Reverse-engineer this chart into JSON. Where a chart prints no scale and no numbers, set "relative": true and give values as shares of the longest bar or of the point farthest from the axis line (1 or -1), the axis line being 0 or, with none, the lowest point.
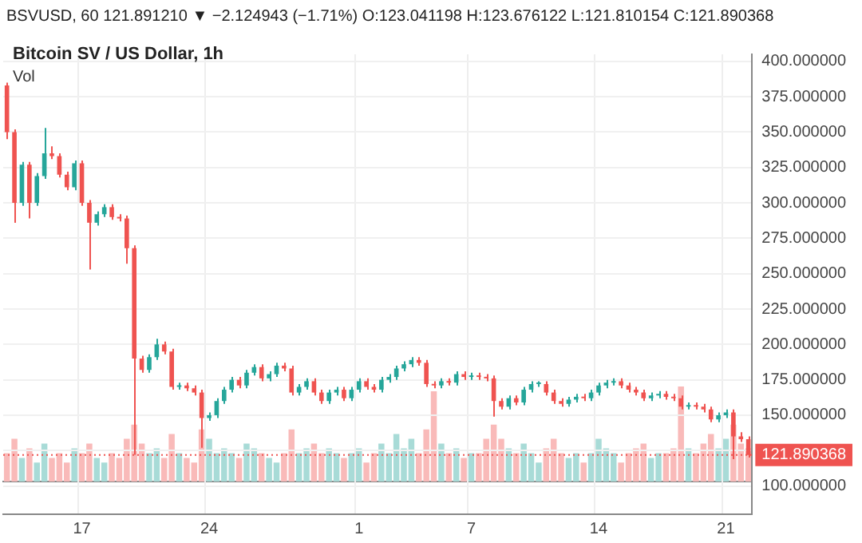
{
  "chart_data": [
    {
      "type": "candlestick",
      "title": "Bitcoin SV / US Dollar, 1h",
      "annotations": [
        "BSVUSD, 60  121.891210 ▼ −2.124943 (−1.71%)  O:123.041198  H:123.676122  L:121.810154  C:121.890368"
      ],
      "categories": [
        null,
        null,
        null,
        null,
        null,
        null,
        null,
        null,
        null,
        null,
        "17",
        null,
        null,
        null,
        null,
        null,
        null,
        null,
        null,
        null,
        null,
        null,
        null,
        null,
        null,
        null,
        null,
        "24",
        null,
        null,
        null,
        null,
        null,
        null,
        null,
        null,
        null,
        null,
        null,
        null,
        null,
        null,
        null,
        null,
        null,
        null,
        null,
        "1",
        null,
        null,
        null,
        null,
        null,
        null,
        null,
        null,
        null,
        null,
        null,
        null,
        null,
        null,
        "7",
        null,
        null,
        null,
        null,
        null,
        null,
        null,
        null,
        null,
        null,
        null,
        null,
        null,
        null,
        null,
        null,
        "14",
        null,
        null,
        null,
        null,
        null,
        null,
        null,
        null,
        null,
        null,
        null,
        null,
        null,
        null,
        null,
        null,
        "21",
        null,
        null,
        null
      ],
      "ohlc": [
        [
          383,
          385,
          345,
          350
        ],
        [
          350,
          352,
          286,
          300
        ],
        [
          300,
          329,
          298,
          327
        ],
        [
          327,
          329,
          289,
          300
        ],
        [
          300,
          321,
          298,
          319
        ],
        [
          319,
          353,
          317,
          335
        ],
        [
          335,
          340,
          331,
          333
        ],
        [
          333,
          335,
          318,
          320
        ],
        [
          320,
          322,
          309,
          311
        ],
        [
          311,
          330,
          309,
          328
        ],
        [
          328,
          330,
          298,
          300
        ],
        [
          300,
          302,
          253,
          286
        ],
        [
          286,
          294,
          284,
          292
        ],
        [
          292,
          299,
          290,
          297
        ],
        [
          297,
          299,
          288,
          290
        ],
        [
          290,
          292,
          287,
          289
        ],
        [
          289,
          291,
          257,
          268
        ],
        [
          268,
          270,
          122,
          190
        ],
        [
          190,
          192,
          180,
          182
        ],
        [
          182,
          193,
          180,
          191
        ],
        [
          191,
          204,
          189,
          200
        ],
        [
          200,
          202,
          193,
          195
        ],
        [
          195,
          197,
          168,
          170
        ],
        [
          170,
          173,
          168,
          171
        ],
        [
          171,
          173,
          167,
          169
        ],
        [
          169,
          171,
          164,
          166
        ],
        [
          166,
          168,
          127,
          148
        ],
        [
          148,
          152,
          146,
          150
        ],
        [
          150,
          162,
          148,
          160
        ],
        [
          160,
          170,
          158,
          168
        ],
        [
          168,
          177,
          166,
          175
        ],
        [
          175,
          177,
          169,
          171
        ],
        [
          171,
          182,
          169,
          180
        ],
        [
          180,
          186,
          178,
          184
        ],
        [
          184,
          186,
          174,
          176
        ],
        [
          176,
          181,
          174,
          179
        ],
        [
          179,
          187,
          177,
          185
        ],
        [
          185,
          187,
          181,
          183
        ],
        [
          183,
          185,
          164,
          166
        ],
        [
          166,
          172,
          164,
          170
        ],
        [
          170,
          176,
          168,
          174
        ],
        [
          174,
          176,
          164,
          166
        ],
        [
          166,
          168,
          158,
          160
        ],
        [
          160,
          168,
          158,
          166
        ],
        [
          166,
          170,
          164,
          168
        ],
        [
          168,
          170,
          160,
          162
        ],
        [
          162,
          170,
          160,
          168
        ],
        [
          168,
          176,
          166,
          174
        ],
        [
          174,
          176,
          168,
          170
        ],
        [
          170,
          172,
          166,
          168
        ],
        [
          168,
          177,
          166,
          175
        ],
        [
          175,
          179,
          173,
          177
        ],
        [
          177,
          185,
          175,
          183
        ],
        [
          183,
          188,
          181,
          186
        ],
        [
          186,
          191,
          184,
          189
        ],
        [
          189,
          191,
          185,
          187
        ],
        [
          187,
          189,
          170,
          172
        ],
        [
          172,
          174,
          169,
          171
        ],
        [
          171,
          176,
          169,
          174
        ],
        [
          174,
          176,
          171,
          173
        ],
        [
          173,
          181,
          171,
          179
        ],
        [
          179,
          181,
          175,
          177
        ],
        [
          177,
          180,
          175,
          178
        ],
        [
          178,
          180,
          175,
          177
        ],
        [
          177,
          179,
          174,
          176
        ],
        [
          176,
          178,
          149,
          160
        ],
        [
          160,
          162,
          154,
          156
        ],
        [
          156,
          164,
          154,
          162
        ],
        [
          162,
          164,
          157,
          159
        ],
        [
          159,
          170,
          157,
          168
        ],
        [
          168,
          174,
          166,
          172
        ],
        [
          172,
          174,
          170,
          172
        ],
        [
          172,
          174,
          164,
          166
        ],
        [
          166,
          168,
          158,
          160
        ],
        [
          160,
          162,
          156,
          158
        ],
        [
          158,
          163,
          156,
          161
        ],
        [
          161,
          165,
          159,
          163
        ],
        [
          163,
          165,
          160,
          162
        ],
        [
          162,
          168,
          160,
          166
        ],
        [
          166,
          173,
          164,
          171
        ],
        [
          171,
          175,
          169,
          173
        ],
        [
          173,
          176,
          171,
          174
        ],
        [
          174,
          176,
          169,
          171
        ],
        [
          171,
          173,
          166,
          168
        ],
        [
          168,
          170,
          164,
          166
        ],
        [
          166,
          168,
          160,
          162
        ],
        [
          162,
          166,
          160,
          164
        ],
        [
          164,
          167,
          162,
          165
        ],
        [
          165,
          167,
          161,
          163
        ],
        [
          163,
          165,
          160,
          162
        ],
        [
          162,
          164,
          154,
          156
        ],
        [
          156,
          159,
          154,
          157
        ],
        [
          157,
          159,
          154,
          156
        ],
        [
          156,
          158,
          152,
          154
        ],
        [
          154,
          156,
          145,
          147
        ],
        [
          147,
          152,
          145,
          150
        ],
        [
          150,
          154,
          148,
          152
        ],
        [
          152,
          154,
          119,
          135
        ],
        [
          135,
          138,
          131,
          133
        ],
        [
          133,
          135,
          120,
          121.890368
        ]
      ],
      "colors": [
        "#ef5350",
        "#ef5350",
        "#26a69a",
        "#ef5350",
        "#26a69a",
        "#26a69a",
        "#ef5350",
        "#ef5350",
        "#ef5350",
        "#26a69a",
        "#ef5350",
        "#ef5350",
        "#26a69a",
        "#26a69a",
        "#ef5350",
        "#ef5350",
        "#ef5350",
        "#ef5350",
        "#ef5350",
        "#26a69a",
        "#26a69a",
        "#ef5350",
        "#ef5350",
        "#26a69a",
        "#ef5350",
        "#ef5350",
        "#ef5350",
        "#26a69a",
        "#26a69a",
        "#26a69a",
        "#26a69a",
        "#ef5350",
        "#26a69a",
        "#26a69a",
        "#ef5350",
        "#26a69a",
        "#26a69a",
        "#ef5350",
        "#ef5350",
        "#26a69a",
        "#26a69a",
        "#ef5350",
        "#ef5350",
        "#26a69a",
        "#26a69a",
        "#ef5350",
        "#26a69a",
        "#26a69a",
        "#ef5350",
        "#ef5350",
        "#26a69a",
        "#26a69a",
        "#26a69a",
        "#26a69a",
        "#26a69a",
        "#ef5350",
        "#ef5350",
        "#ef5350",
        "#26a69a",
        "#ef5350",
        "#26a69a",
        "#ef5350",
        "#26a69a",
        "#ef5350",
        "#ef5350",
        "#ef5350",
        "#ef5350",
        "#26a69a",
        "#ef5350",
        "#26a69a",
        "#26a69a",
        "#26a69a",
        "#ef5350",
        "#ef5350",
        "#ef5350",
        "#26a69a",
        "#26a69a",
        "#ef5350",
        "#26a69a",
        "#26a69a",
        "#26a69a",
        "#26a69a",
        "#ef5350",
        "#ef5350",
        "#ef5350",
        "#ef5350",
        "#26a69a",
        "#26a69a",
        "#ef5350",
        "#ef5350",
        "#ef5350",
        "#26a69a",
        "#ef5350",
        "#ef5350",
        "#ef5350",
        "#26a69a",
        "#26a69a",
        "#ef5350",
        "#ef5350",
        "#ef5350"
      ],
      "ylim": [
        80,
        405
      ],
      "yticks": [
        {
          "value": 100,
          "label": "100.000000"
        },
        {
          "value": 125,
          "label": null
        },
        {
          "value": 150,
          "label": "150.000000"
        },
        {
          "value": 175,
          "label": "175.000000"
        },
        {
          "value": 200,
          "label": "200.000000"
        },
        {
          "value": 225,
          "label": "225.000000"
        },
        {
          "value": 250,
          "label": "250.000000"
        },
        {
          "value": 275,
          "label": "275.000000"
        },
        {
          "value": 300,
          "label": "300.000000"
        },
        {
          "value": 325,
          "label": "325.000000"
        },
        {
          "value": 350,
          "label": "350.000000"
        },
        {
          "value": 375,
          "label": "375.000000"
        },
        {
          "value": 400,
          "label": "400.000000"
        }
      ],
      "grid": true,
      "ref_lines": [
        {
          "axis": "y",
          "value": 121.890368,
          "label": "121.890368",
          "color": "#ef5350",
          "line_style": "dotted"
        }
      ]
    },
    {
      "type": "bar",
      "title": "Vol",
      "relative": true,
      "categories": [
        null,
        null,
        null,
        null,
        null,
        null,
        null,
        null,
        null,
        null,
        null,
        null,
        null,
        null,
        null,
        null,
        null,
        null,
        null,
        null,
        null,
        null,
        null,
        null,
        null,
        null,
        null,
        null,
        null,
        null,
        null,
        null,
        null,
        null,
        null,
        null,
        null,
        null,
        null,
        null,
        null,
        null,
        null,
        null,
        null,
        null,
        null,
        null,
        null,
        null,
        null,
        null,
        null,
        null,
        null,
        null,
        null,
        null,
        null,
        null,
        null,
        null,
        null,
        null,
        null,
        null,
        null,
        null,
        null,
        null,
        null,
        null,
        null,
        null,
        null,
        null,
        null,
        null,
        null,
        null,
        null,
        null,
        null,
        null,
        null,
        null,
        null,
        null,
        null,
        null,
        null,
        null,
        null,
        null,
        null,
        null,
        null,
        null,
        null,
        null
      ],
      "values": [
        0.3,
        0.45,
        0.25,
        0.35,
        0.2,
        0.4,
        0.25,
        0.3,
        0.2,
        0.35,
        0.3,
        0.4,
        0.25,
        0.2,
        0.3,
        0.25,
        0.45,
        0.6,
        0.4,
        0.3,
        0.35,
        0.25,
        0.5,
        0.3,
        0.25,
        0.2,
        0.55,
        0.45,
        0.3,
        0.35,
        0.3,
        0.25,
        0.4,
        0.35,
        0.3,
        0.25,
        0.2,
        0.3,
        0.55,
        0.3,
        0.35,
        0.4,
        0.3,
        0.35,
        0.3,
        0.25,
        0.3,
        0.35,
        0.2,
        0.3,
        0.4,
        0.3,
        0.5,
        0.35,
        0.45,
        0.3,
        0.55,
        0.95,
        0.4,
        0.3,
        0.35,
        0.25,
        0.3,
        0.3,
        0.45,
        0.6,
        0.45,
        0.35,
        0.3,
        0.4,
        0.3,
        0.2,
        0.35,
        0.45,
        0.3,
        0.25,
        0.3,
        0.2,
        0.3,
        0.45,
        0.35,
        0.3,
        0.2,
        0.3,
        0.35,
        0.4,
        0.25,
        0.3,
        0.3,
        0.35,
        1.0,
        0.35,
        0.3,
        0.4,
        0.5,
        0.35,
        0.45,
        0.6,
        0.4,
        0.35
      ],
      "colors": [
        "#f9bab9",
        "#f9bab9",
        "#a8dbd7",
        "#f9bab9",
        "#a8dbd7",
        "#a8dbd7",
        "#f9bab9",
        "#f9bab9",
        "#f9bab9",
        "#a8dbd7",
        "#f9bab9",
        "#f9bab9",
        "#a8dbd7",
        "#a8dbd7",
        "#f9bab9",
        "#f9bab9",
        "#f9bab9",
        "#f9bab9",
        "#f9bab9",
        "#a8dbd7",
        "#a8dbd7",
        "#f9bab9",
        "#f9bab9",
        "#a8dbd7",
        "#f9bab9",
        "#f9bab9",
        "#f9bab9",
        "#a8dbd7",
        "#a8dbd7",
        "#a8dbd7",
        "#a8dbd7",
        "#f9bab9",
        "#a8dbd7",
        "#a8dbd7",
        "#f9bab9",
        "#a8dbd7",
        "#a8dbd7",
        "#f9bab9",
        "#f9bab9",
        "#a8dbd7",
        "#a8dbd7",
        "#f9bab9",
        "#f9bab9",
        "#a8dbd7",
        "#a8dbd7",
        "#f9bab9",
        "#a8dbd7",
        "#a8dbd7",
        "#f9bab9",
        "#f9bab9",
        "#a8dbd7",
        "#a8dbd7",
        "#a8dbd7",
        "#a8dbd7",
        "#a8dbd7",
        "#f9bab9",
        "#f9bab9",
        "#f9bab9",
        "#a8dbd7",
        "#f9bab9",
        "#a8dbd7",
        "#f9bab9",
        "#a8dbd7",
        "#f9bab9",
        "#f9bab9",
        "#f9bab9",
        "#f9bab9",
        "#a8dbd7",
        "#f9bab9",
        "#a8dbd7",
        "#a8dbd7",
        "#a8dbd7",
        "#f9bab9",
        "#f9bab9",
        "#f9bab9",
        "#a8dbd7",
        "#a8dbd7",
        "#f9bab9",
        "#a8dbd7",
        "#a8dbd7",
        "#a8dbd7",
        "#a8dbd7",
        "#f9bab9",
        "#f9bab9",
        "#f9bab9",
        "#f9bab9",
        "#a8dbd7",
        "#a8dbd7",
        "#f9bab9",
        "#f9bab9",
        "#f9bab9",
        "#a8dbd7",
        "#f9bab9",
        "#f9bab9",
        "#f9bab9",
        "#a8dbd7",
        "#a8dbd7",
        "#f9bab9",
        "#f9bab9",
        "#f9bab9"
      ]
    }
  ]
}
